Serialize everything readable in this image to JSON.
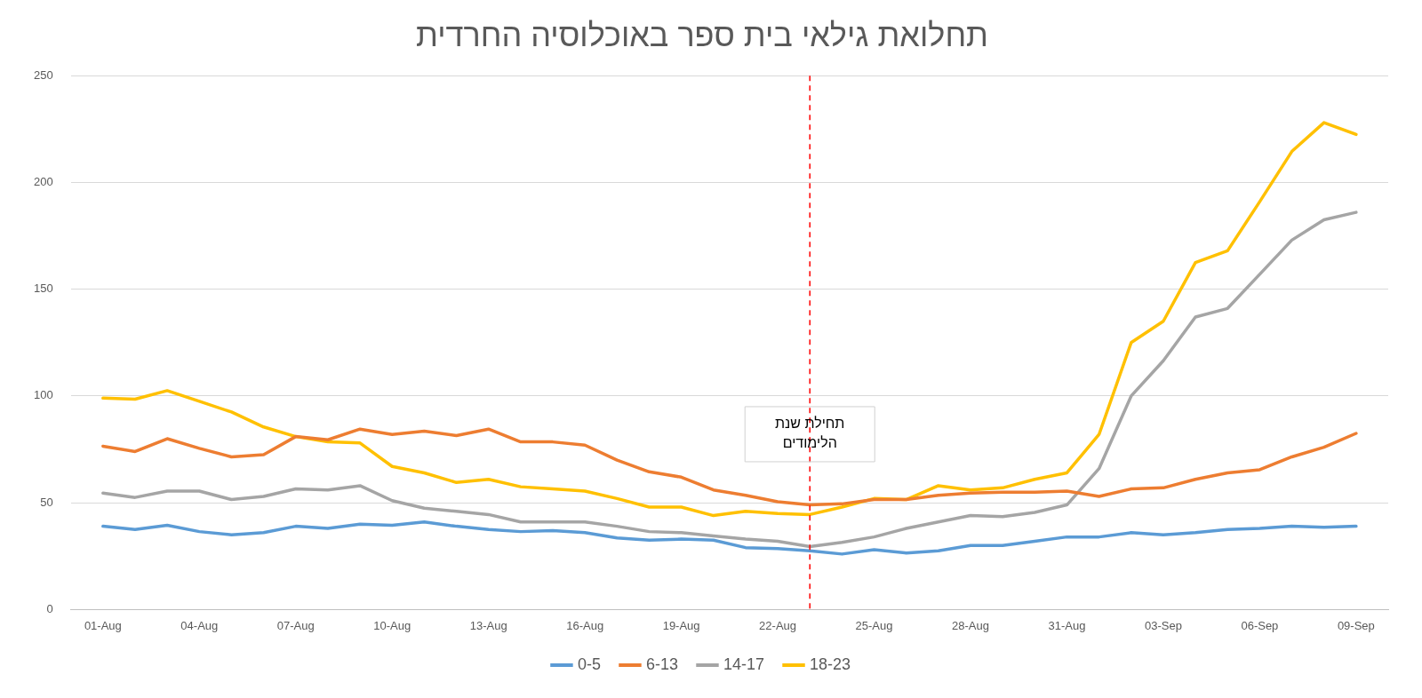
{
  "chart_data": {
    "type": "line",
    "title": "תחלואת גילאי בית ספר באוכלוסיה החרדית",
    "x": [
      "--08-01",
      "--08-02",
      "--08-03",
      "--08-04",
      "--08-05",
      "--08-06",
      "--08-07",
      "--08-08",
      "--08-09",
      "--08-10",
      "--08-11",
      "--08-12",
      "--08-13",
      "--08-14",
      "--08-15",
      "--08-16",
      "--08-17",
      "--08-18",
      "--08-19",
      "--08-20",
      "--08-21",
      "--08-22",
      "--08-23",
      "--08-24",
      "--08-25",
      "--08-26",
      "--08-27",
      "--08-28",
      "--08-29",
      "--08-30",
      "--08-31",
      "--09-01",
      "--09-02",
      "--09-03",
      "--09-04",
      "--09-05",
      "--09-06",
      "--09-07",
      "--09-08",
      "--09-09"
    ],
    "series": [
      {
        "name": "0-5",
        "color": "#5b9bd5",
        "values": [
          39,
          37.5,
          39.5,
          36.5,
          35,
          36,
          39,
          38,
          40,
          39.5,
          41,
          39,
          37.5,
          36.5,
          37,
          36,
          33.5,
          32.5,
          33,
          32.5,
          29,
          28.5,
          27.5,
          26,
          28,
          26.5,
          27.5,
          30,
          30,
          32,
          34,
          34,
          36,
          35,
          36,
          37.5,
          38,
          39,
          38.5,
          39
        ]
      },
      {
        "name": "6-13",
        "color": "#ed7d31",
        "values": [
          76.5,
          74,
          80,
          75.5,
          71.5,
          72.5,
          81,
          79.5,
          84.5,
          82,
          83.5,
          81.5,
          84.5,
          78.5,
          78.5,
          77,
          70,
          64.5,
          62,
          56,
          53.5,
          50.5,
          49,
          49.5,
          51.5,
          51.5,
          53.5,
          54.5,
          55,
          55,
          55.5,
          53,
          56.5,
          57,
          61,
          64,
          65.5,
          71.5,
          76,
          82.5
        ]
      },
      {
        "name": "14-17",
        "color": "#a5a5a5",
        "values": [
          54.5,
          52.5,
          55.5,
          55.5,
          51.5,
          53,
          56.5,
          56,
          58,
          51,
          47.5,
          46,
          44.5,
          41,
          41,
          41,
          39,
          36.5,
          36,
          34.5,
          33,
          32,
          29.5,
          31.5,
          34,
          38,
          41,
          44,
          43.5,
          45.5,
          49,
          66,
          100,
          116.5,
          137,
          141,
          157,
          173,
          182.5,
          186
        ]
      },
      {
        "name": "18-23",
        "color": "#ffc000",
        "values": [
          99,
          98.5,
          102.5,
          97.5,
          92.5,
          85.5,
          81,
          78.5,
          78,
          67,
          64,
          59.5,
          61,
          57.5,
          56.5,
          55.5,
          52,
          48,
          48,
          44,
          46,
          45,
          44.5,
          48,
          52,
          51.5,
          58,
          56,
          57,
          61,
          64,
          82,
          125,
          135,
          162.5,
          168,
          191,
          214.5,
          228,
          222.5
        ]
      }
    ],
    "xlim": [
      "--07-31",
      "--09-10"
    ],
    "xticks": [
      {
        "value": "--08-01",
        "label": "01-Aug"
      },
      {
        "value": "--08-04",
        "label": "04-Aug"
      },
      {
        "value": "--08-07",
        "label": "07-Aug"
      },
      {
        "value": "--08-10",
        "label": "10-Aug"
      },
      {
        "value": "--08-13",
        "label": "13-Aug"
      },
      {
        "value": "--08-16",
        "label": "16-Aug"
      },
      {
        "value": "--08-19",
        "label": "19-Aug"
      },
      {
        "value": "--08-22",
        "label": "22-Aug"
      },
      {
        "value": "--08-25",
        "label": "25-Aug"
      },
      {
        "value": "--08-28",
        "label": "28-Aug"
      },
      {
        "value": "--08-31",
        "label": "31-Aug"
      },
      {
        "value": "--09-03",
        "label": "03-Sep"
      },
      {
        "value": "--09-06",
        "label": "06-Sep"
      },
      {
        "value": "--09-09",
        "label": "09-Sep"
      }
    ],
    "ylim": [
      0,
      250
    ],
    "yticks": [
      0,
      50,
      100,
      150,
      200,
      250
    ],
    "ref_lines": [
      {
        "axis": "x",
        "value": "--08-23",
        "label": "תחילת שנת הלימודים",
        "color": "#ff0000",
        "line_style": "dashed"
      }
    ],
    "grid": "y",
    "legend": "bottom",
    "marker": "none",
    "line_style": "solid"
  }
}
